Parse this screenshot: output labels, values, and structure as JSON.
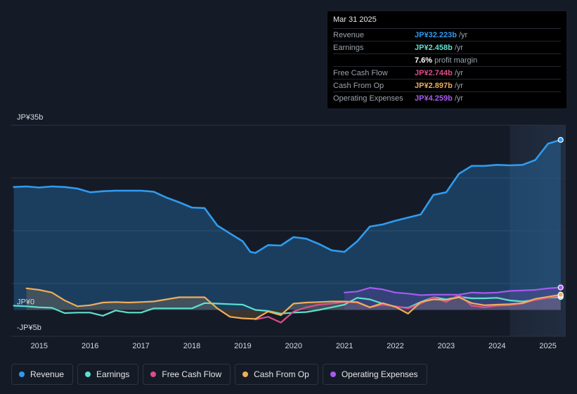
{
  "tooltip": {
    "date": "Mar 31 2025",
    "rows": [
      {
        "label": "Revenue",
        "value": "JP¥32.223b",
        "unit": "/yr",
        "color": "#2f9bf0"
      },
      {
        "label": "Earnings",
        "value": "JP¥2.458b",
        "unit": "/yr",
        "color": "#5fe0cf"
      },
      {
        "label": "",
        "value": "7.6%",
        "unit": "profit margin",
        "color": "#ffffff"
      },
      {
        "label": "Free Cash Flow",
        "value": "JP¥2.744b",
        "unit": "/yr",
        "color": "#d94f8a"
      },
      {
        "label": "Cash From Op",
        "value": "JP¥2.897b",
        "unit": "/yr",
        "color": "#f0ad5a"
      },
      {
        "label": "Operating Expenses",
        "value": "JP¥4.259b",
        "unit": "/yr",
        "color": "#a65bf0"
      }
    ]
  },
  "legend": [
    {
      "label": "Revenue",
      "color": "#2f9bf0"
    },
    {
      "label": "Earnings",
      "color": "#5fe0cf"
    },
    {
      "label": "Free Cash Flow",
      "color": "#d94f8a"
    },
    {
      "label": "Cash From Op",
      "color": "#f0ad5a"
    },
    {
      "label": "Operating Expenses",
      "color": "#a65bf0"
    }
  ],
  "chart_data": {
    "type": "area",
    "ylim": [
      -5,
      35
    ],
    "y_tick_labels": [
      {
        "value": 35,
        "label": "JP¥35b"
      },
      {
        "value": 0,
        "label": "JP¥0"
      },
      {
        "value": -5,
        "label": "-JP¥5b"
      }
    ],
    "x_ticks": [
      2015,
      2016,
      2017,
      2018,
      2019,
      2020,
      2021,
      2022,
      2023,
      2024,
      2025
    ],
    "xlim": [
      2014.45,
      2025.35
    ],
    "highlight_start": 2024.25,
    "series": [
      {
        "name": "Revenue",
        "color": "#2f9bf0",
        "fill": true,
        "x": [
          2014.5,
          2014.75,
          2015.0,
          2015.25,
          2015.5,
          2015.75,
          2016.0,
          2016.25,
          2016.5,
          2016.75,
          2017.0,
          2017.25,
          2017.5,
          2017.75,
          2018.0,
          2018.25,
          2018.5,
          2018.75,
          2019.0,
          2019.15,
          2019.25,
          2019.5,
          2019.75,
          2020.0,
          2020.25,
          2020.5,
          2020.75,
          2021.0,
          2021.25,
          2021.5,
          2021.75,
          2022.0,
          2022.25,
          2022.5,
          2022.75,
          2023.0,
          2023.25,
          2023.5,
          2023.75,
          2024.0,
          2024.25,
          2024.5,
          2024.75,
          2025.0,
          2025.25
        ],
        "values": [
          23.3,
          23.4,
          23.2,
          23.4,
          23.3,
          23.0,
          22.3,
          22.5,
          22.6,
          22.6,
          22.6,
          22.4,
          21.3,
          20.4,
          19.4,
          19.3,
          16.0,
          14.5,
          13.0,
          11.0,
          10.8,
          12.3,
          12.2,
          13.8,
          13.5,
          12.5,
          11.3,
          11.0,
          13.0,
          15.8,
          16.2,
          16.9,
          17.5,
          18.1,
          21.8,
          22.3,
          25.8,
          27.3,
          27.3,
          27.5,
          27.4,
          27.5,
          28.4,
          31.5,
          32.223
        ]
      },
      {
        "name": "Earnings",
        "color": "#5fe0cf",
        "fill": false,
        "x": [
          2014.5,
          2014.75,
          2015.0,
          2015.25,
          2015.5,
          2015.75,
          2016.0,
          2016.25,
          2016.5,
          2016.75,
          2017.0,
          2017.25,
          2017.5,
          2017.75,
          2018.0,
          2018.25,
          2018.5,
          2018.75,
          2019.0,
          2019.25,
          2019.5,
          2019.75,
          2020.0,
          2020.25,
          2020.5,
          2020.75,
          2021.0,
          2021.25,
          2021.5,
          2021.75,
          2022.0,
          2022.25,
          2022.5,
          2022.75,
          2023.0,
          2023.25,
          2023.5,
          2023.75,
          2024.0,
          2024.25,
          2024.5,
          2024.75,
          2025.0,
          2025.25
        ],
        "values": [
          0.8,
          0.7,
          0.5,
          0.4,
          -0.6,
          -0.5,
          -0.5,
          -1.1,
          -0.1,
          -0.5,
          -0.5,
          0.3,
          0.3,
          0.3,
          0.3,
          1.3,
          1.2,
          1.1,
          1.0,
          0.0,
          -0.2,
          -0.7,
          -0.5,
          -0.4,
          0.0,
          0.5,
          1.0,
          2.3,
          2.0,
          1.2,
          0.6,
          0.4,
          1.5,
          2.4,
          2.0,
          2.5,
          2.2,
          2.2,
          2.3,
          1.8,
          1.6,
          1.9,
          2.3,
          2.458
        ]
      },
      {
        "name": "Free Cash Flow",
        "color": "#d94f8a",
        "fill": false,
        "x": [
          2019.25,
          2019.5,
          2019.75,
          2020.0,
          2020.25,
          2020.5,
          2020.75,
          2021.0,
          2021.25,
          2021.5,
          2021.75,
          2022.0,
          2022.25,
          2022.5,
          2022.75,
          2023.0,
          2023.25,
          2023.5,
          2023.75,
          2024.0,
          2024.25,
          2024.5,
          2024.75,
          2025.0,
          2025.25
        ],
        "values": [
          -1.8,
          -1.3,
          -2.4,
          -0.3,
          0.5,
          1.0,
          1.2,
          1.5,
          1.4,
          0.5,
          1.0,
          0.7,
          0.3,
          1.2,
          2.4,
          1.5,
          2.9,
          0.8,
          0.5,
          0.8,
          0.9,
          1.2,
          1.9,
          2.3,
          2.744
        ]
      },
      {
        "name": "Cash From Op",
        "color": "#f0ad5a",
        "fill": true,
        "x": [
          2014.75,
          2015.0,
          2015.25,
          2015.5,
          2015.75,
          2016.0,
          2016.25,
          2016.5,
          2016.75,
          2017.0,
          2017.25,
          2017.5,
          2017.75,
          2018.0,
          2018.25,
          2018.5,
          2018.75,
          2019.0,
          2019.25,
          2019.5,
          2019.75,
          2020.0,
          2020.25,
          2020.5,
          2020.75,
          2021.0,
          2021.25,
          2021.5,
          2021.75,
          2022.0,
          2022.25,
          2022.5,
          2022.75,
          2023.0,
          2023.25,
          2023.5,
          2023.75,
          2024.0,
          2024.25,
          2024.5,
          2024.75,
          2025.0,
          2025.25
        ],
        "values": [
          4.1,
          3.8,
          3.3,
          1.8,
          0.7,
          0.9,
          1.4,
          1.5,
          1.4,
          1.5,
          1.6,
          2.0,
          2.4,
          2.4,
          2.4,
          0.3,
          -1.3,
          -1.6,
          -1.7,
          -0.3,
          -1.0,
          1.2,
          1.4,
          1.5,
          1.6,
          1.6,
          1.5,
          0.5,
          1.3,
          0.6,
          -0.7,
          1.5,
          2.0,
          1.9,
          2.4,
          1.3,
          0.9,
          1.0,
          1.1,
          1.3,
          2.1,
          2.5,
          2.897
        ]
      },
      {
        "name": "Operating Expenses",
        "color": "#a65bf0",
        "fill": true,
        "x": [
          2021.0,
          2021.25,
          2021.5,
          2021.75,
          2022.0,
          2022.25,
          2022.5,
          2022.75,
          2023.0,
          2023.25,
          2023.5,
          2023.75,
          2024.0,
          2024.25,
          2024.5,
          2024.75,
          2025.0,
          2025.25
        ],
        "values": [
          3.3,
          3.5,
          4.2,
          3.9,
          3.3,
          3.1,
          2.8,
          2.9,
          2.9,
          2.9,
          3.3,
          3.2,
          3.3,
          3.6,
          3.7,
          3.8,
          4.1,
          4.259
        ]
      }
    ]
  }
}
